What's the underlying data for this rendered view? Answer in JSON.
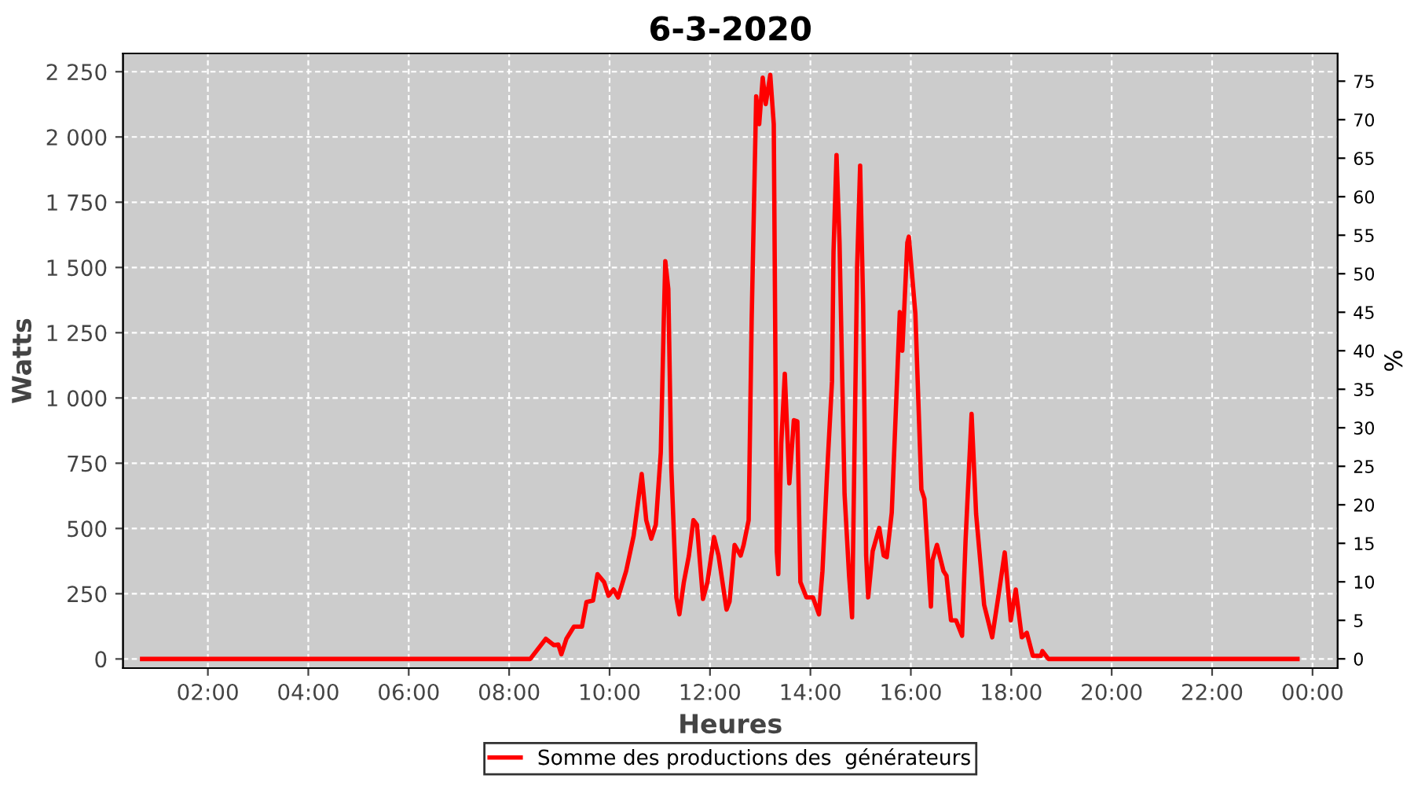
{
  "chart_data": {
    "type": "line",
    "title": "6-3-2020",
    "xlabel": "Heures",
    "ylabel": "Watts",
    "y2label": "%",
    "xlim": [
      0.31,
      24.5
    ],
    "xticks": [
      {
        "value": 2,
        "label": "02:00"
      },
      {
        "value": 4,
        "label": "04:00"
      },
      {
        "value": 6,
        "label": "06:00"
      },
      {
        "value": 8,
        "label": "08:00"
      },
      {
        "value": 10,
        "label": "10:00"
      },
      {
        "value": 12,
        "label": "12:00"
      },
      {
        "value": 14,
        "label": "14:00"
      },
      {
        "value": 16,
        "label": "16:00"
      },
      {
        "value": 18,
        "label": "18:00"
      },
      {
        "value": 20,
        "label": "20:00"
      },
      {
        "value": 22,
        "label": "22:00"
      },
      {
        "value": 24,
        "label": "00:00"
      }
    ],
    "ylim": [
      -35,
      2320
    ],
    "yticks": [
      0,
      250,
      500,
      750,
      {
        "value": 1000,
        "label": "1 000"
      },
      {
        "value": 1250,
        "label": "1 250"
      },
      {
        "value": 1500,
        "label": "1 500"
      },
      {
        "value": 1750,
        "label": "1 750"
      },
      {
        "value": 2000,
        "label": "2 000"
      },
      {
        "value": 2250,
        "label": "2 250"
      }
    ],
    "y2lim": [
      -1.2,
      78.6
    ],
    "y2ticks": [
      0,
      5,
      10,
      15,
      20,
      25,
      30,
      35,
      40,
      45,
      50,
      55,
      60,
      65,
      70,
      75
    ],
    "grid": true,
    "legend": "bottom",
    "marker": "none",
    "line_style": "solid",
    "series": [
      {
        "name": "Somme des productions des  générateurs",
        "color": "#ff0000",
        "x": [
          0.69,
          8.0,
          8.42,
          8.73,
          8.89,
          8.98,
          9.04,
          9.14,
          9.29,
          9.45,
          9.54,
          9.67,
          9.76,
          9.89,
          9.98,
          10.08,
          10.17,
          10.33,
          10.48,
          10.64,
          10.73,
          10.83,
          10.92,
          11.02,
          11.08,
          11.11,
          11.17,
          11.23,
          11.33,
          11.39,
          11.48,
          11.58,
          11.67,
          11.74,
          11.86,
          11.95,
          12.08,
          12.17,
          12.33,
          12.39,
          12.49,
          12.61,
          12.67,
          12.77,
          12.83,
          12.92,
          12.98,
          13.05,
          13.11,
          13.2,
          13.27,
          13.33,
          13.36,
          13.42,
          13.49,
          13.58,
          13.67,
          13.74,
          13.8,
          13.92,
          14.05,
          14.17,
          14.24,
          14.33,
          14.43,
          14.46,
          14.52,
          14.58,
          14.68,
          14.77,
          14.83,
          14.93,
          14.99,
          15.05,
          15.11,
          15.15,
          15.24,
          15.37,
          15.46,
          15.52,
          15.62,
          15.78,
          15.83,
          15.93,
          15.96,
          16.09,
          16.21,
          16.27,
          16.4,
          16.43,
          16.52,
          16.65,
          16.71,
          16.8,
          16.9,
          17.02,
          17.09,
          17.21,
          17.3,
          17.46,
          17.56,
          17.62,
          17.74,
          17.87,
          17.99,
          18.09,
          18.21,
          18.31,
          18.43,
          18.59,
          18.62,
          18.74,
          23.7
        ],
        "values": [
          0,
          0,
          0,
          77,
          53,
          55,
          18,
          77,
          124,
          124,
          218,
          224,
          325,
          295,
          242,
          266,
          236,
          337,
          472,
          709,
          532,
          461,
          514,
          791,
          1299,
          1524,
          1417,
          732,
          236,
          171,
          295,
          396,
          532,
          514,
          230,
          295,
          467,
          396,
          189,
          220,
          437,
          396,
          437,
          532,
          1299,
          2156,
          2049,
          2227,
          2126,
          2238,
          2049,
          413,
          325,
          827,
          1093,
          673,
          915,
          910,
          295,
          236,
          236,
          171,
          337,
          703,
          1063,
          1559,
          1931,
          1595,
          632,
          319,
          159,
          1500,
          1890,
          1358,
          396,
          236,
          413,
          502,
          396,
          390,
          561,
          1329,
          1181,
          1595,
          1618,
          1323,
          650,
          614,
          201,
          378,
          437,
          337,
          319,
          148,
          148,
          89,
          455,
          939,
          555,
          207,
          130,
          83,
          236,
          408,
          148,
          266,
          83,
          100,
          12,
          12,
          30,
          0,
          0
        ]
      }
    ]
  }
}
